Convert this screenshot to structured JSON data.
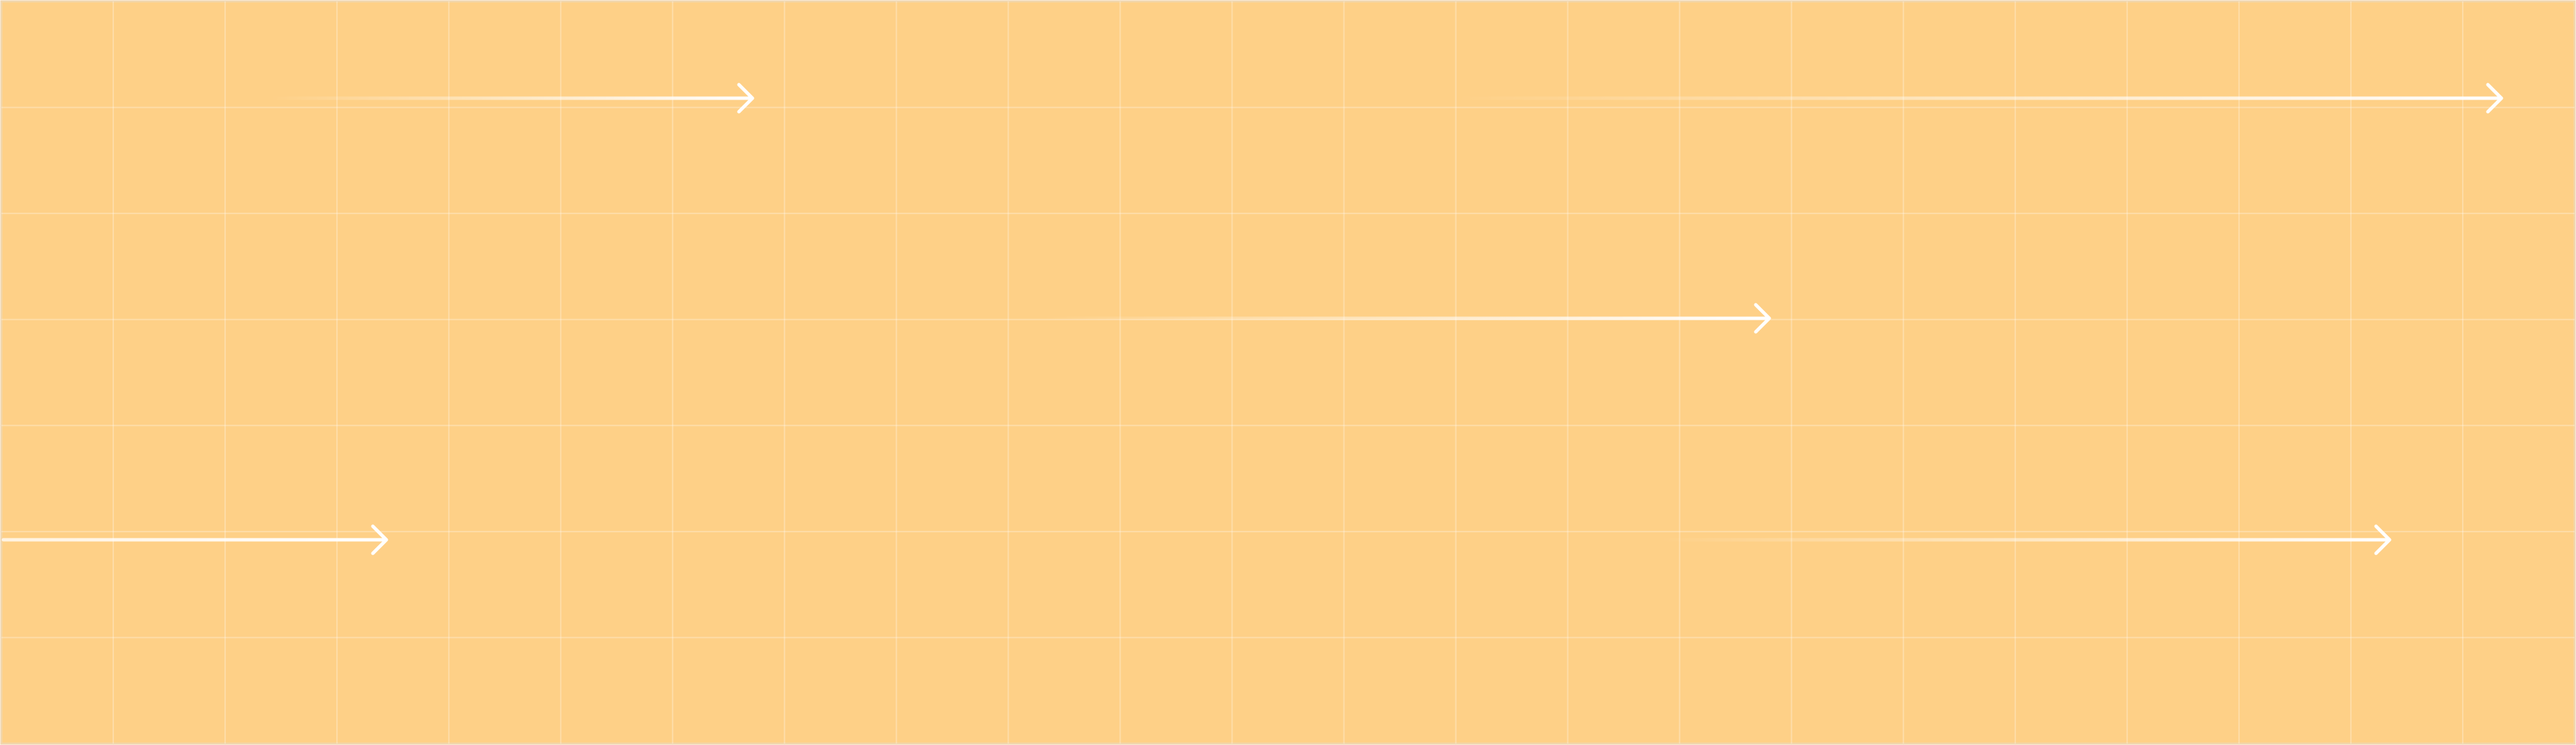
{
  "background_color": "#FED087",
  "grid_line_color": "#FFFFFF",
  "arrow_color": "#FFFFFF",
  "grid": {
    "columns": 23,
    "rows": 7
  },
  "arrows": [
    {
      "name": "arrow-top-left",
      "icon": "arrow-right-icon",
      "direction": "right"
    },
    {
      "name": "arrow-top-right",
      "icon": "arrow-right-icon",
      "direction": "right"
    },
    {
      "name": "arrow-middle",
      "icon": "arrow-right-icon",
      "direction": "right"
    },
    {
      "name": "arrow-bottom-left",
      "icon": "arrow-right-icon",
      "direction": "right"
    },
    {
      "name": "arrow-bottom-right",
      "icon": "arrow-right-icon",
      "direction": "right"
    }
  ]
}
